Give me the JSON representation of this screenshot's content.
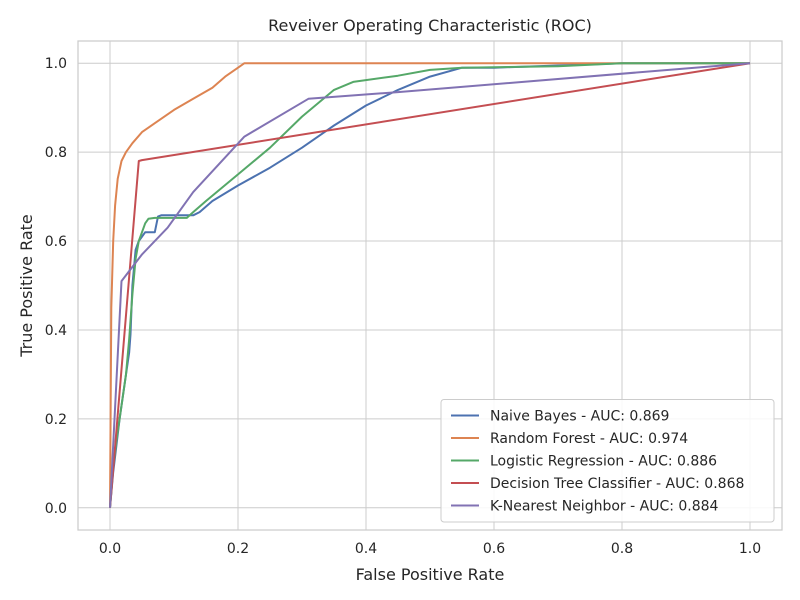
{
  "chart_data": {
    "type": "line",
    "title": "Reveiver Operating Characteristic (ROC)",
    "xlabel": "False Positive Rate",
    "ylabel": "True Positive Rate",
    "xlim": [
      -0.05,
      1.05
    ],
    "ylim": [
      -0.05,
      1.05
    ],
    "xticks": [
      "0.0",
      "0.2",
      "0.4",
      "0.6",
      "0.8",
      "1.0"
    ],
    "yticks": [
      "0.0",
      "0.2",
      "0.4",
      "0.6",
      "0.8",
      "1.0"
    ],
    "grid": true,
    "legend_position": "lower-right",
    "series": [
      {
        "name": "Naive Bayes - AUC: 0.869",
        "color": "#4c72b0",
        "x": [
          0,
          0.005,
          0.01,
          0.015,
          0.02,
          0.025,
          0.03,
          0.032,
          0.035,
          0.04,
          0.045,
          0.05,
          0.055,
          0.06,
          0.07,
          0.075,
          0.08,
          0.13,
          0.14,
          0.16,
          0.2,
          0.25,
          0.3,
          0.35,
          0.4,
          0.45,
          0.5,
          0.55,
          0.6,
          0.7,
          0.8,
          1.0
        ],
        "y": [
          0,
          0.08,
          0.14,
          0.2,
          0.25,
          0.3,
          0.35,
          0.39,
          0.5,
          0.58,
          0.6,
          0.61,
          0.62,
          0.62,
          0.62,
          0.655,
          0.658,
          0.658,
          0.665,
          0.69,
          0.725,
          0.765,
          0.81,
          0.86,
          0.905,
          0.94,
          0.97,
          0.99,
          0.99,
          0.995,
          1.0,
          1.0
        ]
      },
      {
        "name": "Random Forest - AUC: 0.974",
        "color": "#dd8452",
        "x": [
          0,
          0.002,
          0.005,
          0.008,
          0.012,
          0.018,
          0.025,
          0.035,
          0.05,
          0.07,
          0.1,
          0.13,
          0.16,
          0.18,
          0.2,
          0.21,
          0.3,
          0.5,
          1.0
        ],
        "y": [
          0,
          0.45,
          0.6,
          0.68,
          0.74,
          0.78,
          0.8,
          0.82,
          0.845,
          0.865,
          0.895,
          0.92,
          0.945,
          0.97,
          0.99,
          1.0,
          1.0,
          1.0,
          1.0
        ]
      },
      {
        "name": "Logistic Regression - AUC: 0.886",
        "color": "#55a868",
        "x": [
          0,
          0.005,
          0.01,
          0.015,
          0.02,
          0.025,
          0.03,
          0.035,
          0.04,
          0.045,
          0.05,
          0.055,
          0.06,
          0.07,
          0.12,
          0.13,
          0.15,
          0.2,
          0.25,
          0.3,
          0.35,
          0.38,
          0.45,
          0.5,
          0.55,
          0.7,
          0.8,
          1.0
        ],
        "y": [
          0,
          0.09,
          0.15,
          0.2,
          0.25,
          0.3,
          0.38,
          0.48,
          0.56,
          0.6,
          0.62,
          0.64,
          0.65,
          0.652,
          0.652,
          0.665,
          0.69,
          0.75,
          0.81,
          0.88,
          0.94,
          0.958,
          0.972,
          0.985,
          0.99,
          0.993,
          1.0,
          1.0
        ]
      },
      {
        "name": "Decision Tree Classifier - AUC: 0.868",
        "color": "#c44e52",
        "x": [
          0,
          0.045,
          0.05,
          1.0
        ],
        "y": [
          0,
          0.78,
          0.782,
          1.0
        ]
      },
      {
        "name": "K-Nearest Neighbor - AUC: 0.884",
        "color": "#8172b3",
        "x": [
          0,
          0.018,
          0.05,
          0.09,
          0.13,
          0.21,
          0.31,
          0.45,
          1.0
        ],
        "y": [
          0,
          0.51,
          0.57,
          0.63,
          0.71,
          0.835,
          0.92,
          0.935,
          1.0
        ]
      }
    ]
  }
}
